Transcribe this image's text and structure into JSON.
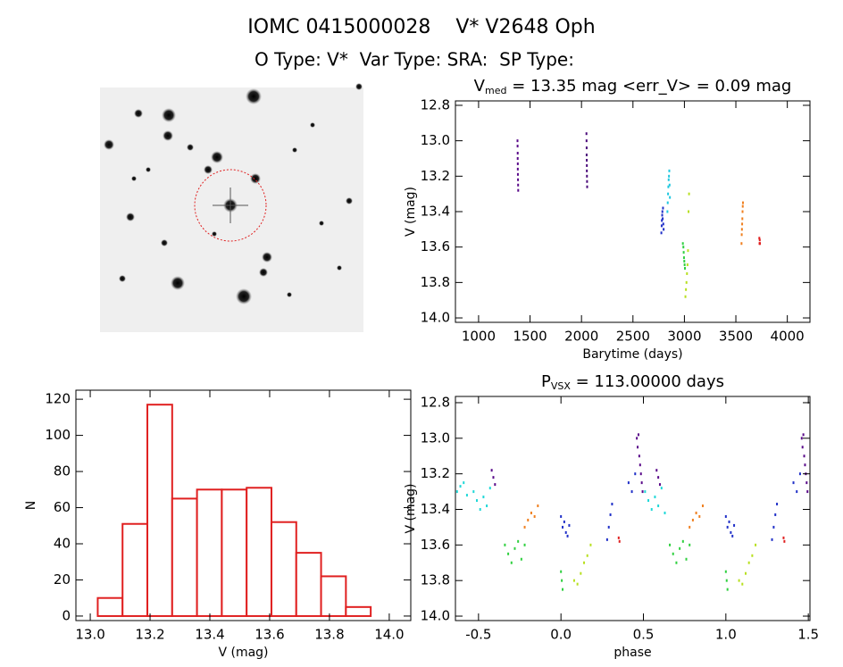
{
  "title": "IOMC 0415000028    V* V2648 Oph",
  "subtitle": "O Type: V*  Var Type: SRA:  SP Type:",
  "chart_data": [
    {
      "type": "scatter",
      "title": {
        "main": "V",
        "sub": "med",
        "rest": " = 13.35 mag <err_V> = 0.09 mag"
      },
      "xlabel": "Barytime (days)",
      "ylabel": "V (mag)",
      "xlim": [
        775,
        4220
      ],
      "ylim": [
        14.025,
        12.775
      ],
      "xticks": [
        1000,
        1500,
        2000,
        2500,
        3000,
        3500,
        4000
      ],
      "yticks": [
        12.8,
        {
          "value": 13,
          "label": "13.0"
        },
        13.2,
        13.4,
        13.6,
        13.8,
        {
          "value": 14,
          "label": "14.0"
        }
      ],
      "series": [
        {
          "color": "#5a0a8a",
          "x": [
            1378,
            1379,
            1380,
            1380,
            1381,
            1381,
            1382,
            1383,
            1384,
            1385
          ],
          "values": [
            13.0,
            13.03,
            13.07,
            13.1,
            13.13,
            13.16,
            13.19,
            13.22,
            13.25,
            13.28
          ]
        },
        {
          "color": "#4a0a7a",
          "x": [
            2048,
            2049,
            2050,
            2050,
            2051,
            2052,
            2052,
            2053,
            2054,
            2055
          ],
          "values": [
            12.96,
            13.0,
            13.04,
            13.08,
            13.11,
            13.14,
            13.17,
            13.2,
            13.23,
            13.26
          ]
        },
        {
          "color": "#2030c8",
          "x": [
            2776,
            2779,
            2781,
            2784,
            2786,
            2789,
            2792,
            2795,
            2798
          ],
          "values": [
            13.52,
            13.48,
            13.45,
            13.42,
            13.4,
            13.44,
            13.38,
            13.47,
            13.5
          ]
        },
        {
          "color": "#20c8e0",
          "x": [
            2835,
            2838,
            2841,
            2844,
            2847,
            2850,
            2853,
            2856,
            2859
          ],
          "values": [
            13.4,
            13.35,
            13.3,
            13.26,
            13.22,
            13.2,
            13.17,
            13.25,
            13.32
          ]
        },
        {
          "color": "#30d040",
          "x": [
            2985,
            2990,
            2993,
            2996,
            2999,
            3002,
            3005
          ],
          "values": [
            13.58,
            13.6,
            13.63,
            13.66,
            13.68,
            13.7,
            13.72
          ]
        },
        {
          "color": "#b8e020",
          "x": [
            3010,
            3015,
            3020,
            3025,
            3030,
            3035,
            3040,
            3045
          ],
          "values": [
            13.88,
            13.84,
            13.8,
            13.75,
            13.7,
            13.62,
            13.4,
            13.3
          ]
        },
        {
          "color": "#f08020",
          "x": [
            3555,
            3557,
            3559,
            3561,
            3563,
            3565,
            3567,
            3569
          ],
          "values": [
            13.58,
            13.53,
            13.5,
            13.47,
            13.44,
            13.4,
            13.37,
            13.35
          ]
        },
        {
          "color": "#e02020",
          "x": [
            3728,
            3730,
            3732,
            3734
          ],
          "values": [
            13.55,
            13.58,
            13.56,
            13.58
          ]
        }
      ]
    },
    {
      "type": "histogram",
      "xlabel": "V (mag)",
      "ylabel": "N",
      "color": "#e02020",
      "xlim": [
        12.952,
        14.072
      ],
      "ylim": [
        -2.5,
        125
      ],
      "xticks": [
        {
          "value": 13,
          "label": "13.0"
        },
        13.2,
        13.4,
        13.6,
        13.8,
        {
          "value": 14,
          "label": "14.0"
        }
      ],
      "yticks": [
        0,
        20,
        40,
        60,
        80,
        100,
        120
      ],
      "bins": [
        13.025,
        13.108,
        13.191,
        13.274,
        13.357,
        13.44,
        13.523,
        13.606,
        13.689,
        13.772,
        13.855,
        13.938
      ],
      "values": [
        10,
        51,
        117,
        65,
        70,
        70,
        71,
        52,
        35,
        22,
        5
      ]
    },
    {
      "type": "scatter",
      "title": {
        "main": "P",
        "sub": "VSX",
        "rest": " = 113.00000 days"
      },
      "xlabel": "phase",
      "ylabel": "V (mag)",
      "xlim": [
        -0.64,
        1.51
      ],
      "ylim": [
        14.025,
        12.765
      ],
      "xticks": [
        -0.5,
        {
          "value": 0,
          "label": "0.0"
        },
        0.5,
        {
          "value": 1,
          "label": "1.0"
        },
        1.5
      ],
      "yticks": [
        12.8,
        {
          "value": 13,
          "label": "13.0"
        },
        13.2,
        13.4,
        13.6,
        13.8,
        {
          "value": 14,
          "label": "14.0"
        }
      ],
      "series": [
        {
          "color": "#5a0a8a",
          "x": [
            0.46,
            0.465,
            0.47,
            0.475,
            0.48,
            0.485,
            0.49,
            0.495,
            1.46,
            1.465,
            1.47,
            1.475,
            1.48,
            1.485,
            1.49,
            1.495,
            -0.42,
            -0.41,
            -0.4,
            0.58,
            0.59,
            0.6
          ],
          "values": [
            13.0,
            13.05,
            12.98,
            13.1,
            13.15,
            13.2,
            13.25,
            13.3,
            13.0,
            13.05,
            12.98,
            13.1,
            13.15,
            13.2,
            13.25,
            13.3,
            13.18,
            13.22,
            13.26,
            13.18,
            13.22,
            13.26
          ]
        },
        {
          "color": "#2030c8",
          "x": [
            0.0,
            0.01,
            0.02,
            0.03,
            0.04,
            0.05,
            1.0,
            1.01,
            1.02,
            1.03,
            1.04,
            1.05,
            0.28,
            0.29,
            0.3,
            0.31,
            1.28,
            1.29,
            1.3,
            1.31,
            0.41,
            0.43,
            0.45,
            1.41,
            1.43,
            1.45
          ],
          "values": [
            13.44,
            13.5,
            13.47,
            13.53,
            13.55,
            13.49,
            13.44,
            13.5,
            13.47,
            13.53,
            13.55,
            13.49,
            13.57,
            13.5,
            13.43,
            13.37,
            13.57,
            13.5,
            13.43,
            13.37,
            13.25,
            13.3,
            13.2,
            13.25,
            13.3,
            13.2
          ]
        },
        {
          "color": "#20d8d8",
          "x": [
            -0.63,
            -0.61,
            -0.59,
            -0.57,
            -0.53,
            -0.51,
            -0.49,
            -0.47,
            -0.45,
            -0.43,
            0.51,
            0.53,
            0.55,
            0.57,
            0.59,
            0.61,
            0.63
          ],
          "values": [
            13.3,
            13.27,
            13.25,
            13.32,
            13.3,
            13.35,
            13.4,
            13.33,
            13.38,
            13.28,
            13.3,
            13.35,
            13.4,
            13.33,
            13.38,
            13.28,
            13.42
          ]
        },
        {
          "color": "#30d040",
          "x": [
            -0.34,
            -0.32,
            -0.3,
            -0.28,
            -0.26,
            -0.24,
            -0.22,
            0.66,
            0.68,
            0.7,
            0.72,
            0.74,
            0.76,
            0.78,
            0.0,
            0.005,
            0.01,
            1.0,
            1.005,
            1.01
          ],
          "values": [
            13.6,
            13.65,
            13.7,
            13.62,
            13.58,
            13.68,
            13.6,
            13.6,
            13.65,
            13.7,
            13.62,
            13.58,
            13.68,
            13.6,
            13.75,
            13.8,
            13.85,
            13.75,
            13.8,
            13.85
          ]
        },
        {
          "color": "#b8e020",
          "x": [
            0.08,
            0.1,
            0.12,
            0.14,
            0.16,
            0.18,
            1.08,
            1.1,
            1.12,
            1.14,
            1.16,
            1.18
          ],
          "values": [
            13.8,
            13.82,
            13.76,
            13.7,
            13.66,
            13.6,
            13.8,
            13.82,
            13.76,
            13.7,
            13.66,
            13.6
          ]
        },
        {
          "color": "#f08020",
          "x": [
            -0.22,
            -0.2,
            -0.18,
            -0.16,
            -0.14,
            0.78,
            0.8,
            0.82,
            0.84,
            0.86
          ],
          "values": [
            13.5,
            13.46,
            13.42,
            13.44,
            13.38,
            13.5,
            13.46,
            13.42,
            13.44,
            13.38
          ]
        },
        {
          "color": "#e02020",
          "x": [
            0.35,
            0.355,
            1.35,
            1.355
          ],
          "values": [
            13.56,
            13.58,
            13.56,
            13.58
          ]
        }
      ]
    }
  ]
}
